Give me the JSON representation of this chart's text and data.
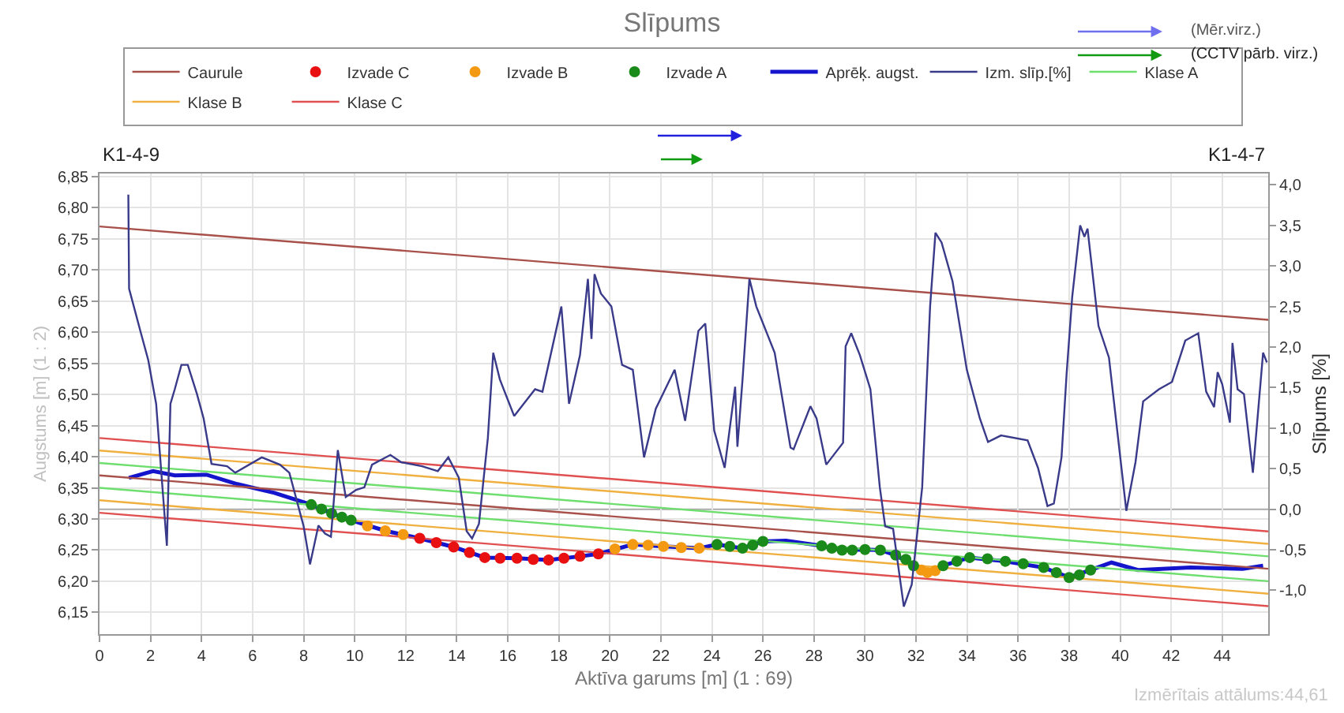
{
  "chart_data": {
    "type": "line",
    "title": "Slīpums",
    "xlabel": "Aktīva garums [m] (1 : 69)",
    "ylabel": "Augstums [m] (1 : 2)",
    "y2label": "Slīpums [%]",
    "annotations": [
      "K1-4-9",
      "K1-4-7",
      "(Mēr.virz.)",
      "(CCTV pārb. virz.)",
      "Izmērītais attālums:44,61"
    ],
    "xlim": [
      0,
      45.8
    ],
    "xticks": [
      0,
      2,
      4,
      6,
      8,
      10,
      12,
      14,
      16,
      18,
      20,
      22,
      24,
      26,
      28,
      30,
      32,
      34,
      36,
      38,
      40,
      42,
      44
    ],
    "ylim": [
      6.115,
      6.855
    ],
    "yticks": [
      {
        "value": 6.15,
        "label": "6,15"
      },
      {
        "value": 6.2,
        "label": "6,20"
      },
      {
        "value": 6.25,
        "label": "6,25"
      },
      {
        "value": 6.3,
        "label": "6,30"
      },
      {
        "value": 6.35,
        "label": "6,35"
      },
      {
        "value": 6.4,
        "label": "6,40"
      },
      {
        "value": 6.45,
        "label": "6,45"
      },
      {
        "value": 6.5,
        "label": "6,50"
      },
      {
        "value": 6.55,
        "label": "6,55"
      },
      {
        "value": 6.6,
        "label": "6,60"
      },
      {
        "value": 6.65,
        "label": "6,65"
      },
      {
        "value": 6.7,
        "label": "6,70"
      },
      {
        "value": 6.75,
        "label": "6,75"
      },
      {
        "value": 6.8,
        "label": "6,80"
      },
      {
        "value": 6.85,
        "label": "6,85"
      }
    ],
    "y2lim": [
      -1.54,
      4.14
    ],
    "y2ticks": [
      {
        "value": -1.0,
        "label": "-1,0"
      },
      {
        "value": -0.5,
        "label": "-0,5"
      },
      {
        "value": 0,
        "label": "0,0"
      },
      {
        "value": 0.5,
        "label": "0,5"
      },
      {
        "value": 1.0,
        "label": "1,0"
      },
      {
        "value": 1.5,
        "label": "1,5"
      },
      {
        "value": 2.0,
        "label": "2,0"
      },
      {
        "value": 2.5,
        "label": "2,5"
      },
      {
        "value": 3.0,
        "label": "3,0"
      },
      {
        "value": 3.5,
        "label": "3,5"
      },
      {
        "value": 4.0,
        "label": "4,0"
      }
    ],
    "grid": true,
    "legend": "top",
    "ref_lines": [
      {
        "axis": "y2",
        "value": 0,
        "color": "#aaaaaa"
      }
    ],
    "series": [
      {
        "name": "Caurule",
        "color": "#a8504a",
        "x": [
          0,
          45.8
        ],
        "values": [
          6.77,
          6.62
        ]
      },
      {
        "type": "scatter",
        "marker": "circle",
        "name": "Izvade C",
        "color": "#e81010",
        "x": [
          12.55,
          13.2,
          13.88,
          14.5,
          15.1,
          15.7,
          16.36,
          17.0,
          17.6,
          18.2,
          18.83,
          19.55
        ],
        "values": [
          6.269,
          6.262,
          6.255,
          6.246,
          6.238,
          6.237,
          6.237,
          6.235,
          6.234,
          6.237,
          6.24,
          6.244
        ]
      },
      {
        "type": "scatter",
        "marker": "circle",
        "name": "Izvade B",
        "color": "#f39a12",
        "x": [
          10.5,
          11.2,
          11.9,
          20.2,
          20.9,
          21.5,
          22.1,
          22.8,
          23.5,
          32.2,
          32.45,
          32.75
        ],
        "values": [
          6.289,
          6.281,
          6.275,
          6.252,
          6.259,
          6.258,
          6.256,
          6.254,
          6.253,
          6.218,
          6.214,
          6.217
        ]
      },
      {
        "type": "scatter",
        "marker": "circle",
        "name": "Izvade A",
        "color": "#1a8a1a",
        "x": [
          8.3,
          8.7,
          9.1,
          9.5,
          9.86,
          24.2,
          24.7,
          25.2,
          25.6,
          26.0,
          28.3,
          28.7,
          29.1,
          29.5,
          30.0,
          30.6,
          31.2,
          31.6,
          31.9,
          33.06,
          33.6,
          34.1,
          34.8,
          35.5,
          36.2,
          37.0,
          37.5,
          38.0,
          38.4,
          38.84
        ],
        "values": [
          6.323,
          6.316,
          6.309,
          6.303,
          6.298,
          6.259,
          6.256,
          6.253,
          6.258,
          6.264,
          6.257,
          6.253,
          6.25,
          6.25,
          6.251,
          6.25,
          6.242,
          6.235,
          6.225,
          6.225,
          6.232,
          6.238,
          6.236,
          6.232,
          6.228,
          6.222,
          6.214,
          6.206,
          6.21,
          6.218
        ]
      },
      {
        "name": "Aprēķ. augst.",
        "color": "#1414cc",
        "x": [
          1.15,
          2.1,
          2.95,
          4.2,
          5.4,
          6.85,
          8.3,
          9.1,
          9.86,
          11.2,
          12.54,
          13.88,
          15.1,
          16.36,
          17.6,
          18.83,
          19.55,
          20.9,
          22.1,
          23.5,
          24.2,
          25.2,
          26.0,
          26.9,
          28.3,
          29.1,
          30.0,
          30.6,
          31.2,
          31.9,
          32.45,
          33.06,
          34.1,
          35.5,
          37.0,
          38.0,
          38.84,
          39.66,
          40.7,
          42.75,
          44.8,
          45.6
        ],
        "values": [
          6.366,
          6.377,
          6.37,
          6.371,
          6.356,
          6.342,
          6.323,
          6.309,
          6.298,
          6.281,
          6.269,
          6.255,
          6.238,
          6.237,
          6.234,
          6.24,
          6.244,
          6.259,
          6.256,
          6.253,
          6.259,
          6.253,
          6.264,
          6.265,
          6.257,
          6.25,
          6.251,
          6.25,
          6.242,
          6.225,
          6.214,
          6.225,
          6.238,
          6.232,
          6.222,
          6.206,
          6.218,
          6.23,
          6.218,
          6.222,
          6.22,
          6.225
        ]
      },
      {
        "name": "Izm. slīp.[%]",
        "axis": "y2",
        "color": "#3a3a8a",
        "x": [
          1.13,
          1.16,
          1.6,
          1.91,
          2.22,
          2.32,
          2.64,
          2.78,
          2.95,
          3.21,
          3.46,
          3.82,
          4.08,
          4.39,
          5.0,
          5.32,
          6.36,
          7.07,
          7.44,
          8.0,
          8.25,
          8.58,
          8.84,
          9.07,
          9.34,
          9.65,
          10.06,
          10.38,
          10.68,
          11.4,
          11.82,
          12.64,
          13.26,
          13.67,
          14.08,
          14.39,
          14.6,
          14.87,
          15.22,
          15.43,
          15.69,
          16.25,
          17.07,
          17.36,
          18.1,
          18.4,
          18.83,
          19.14,
          19.28,
          19.4,
          19.65,
          20.06,
          20.48,
          20.9,
          21.34,
          21.8,
          22.54,
          22.95,
          23.47,
          23.74,
          24.09,
          24.5,
          24.91,
          25.0,
          25.2,
          25.47,
          25.74,
          26.46,
          27.08,
          27.2,
          27.86,
          28.1,
          28.48,
          28.7,
          29.14,
          29.24,
          29.46,
          29.8,
          30.21,
          30.58,
          30.79,
          31.1,
          31.52,
          31.83,
          32.24,
          32.55,
          32.76,
          33.0,
          33.43,
          33.99,
          34.5,
          34.82,
          35.33,
          36.37,
          36.78,
          37.15,
          37.4,
          37.7,
          37.9,
          38.12,
          38.43,
          38.6,
          38.72,
          39.15,
          39.56,
          40.24,
          40.6,
          40.9,
          41.52,
          42.03,
          42.55,
          43.06,
          43.37,
          43.68,
          43.82,
          44.0,
          44.3,
          44.4,
          44.6,
          44.85,
          45.2,
          45.6,
          45.75
        ],
        "values": [
          3.88,
          2.72,
          2.2,
          1.84,
          1.3,
          0.88,
          -0.45,
          1.3,
          1.48,
          1.78,
          1.78,
          1.42,
          1.12,
          0.56,
          0.53,
          0.45,
          0.64,
          0.55,
          0.45,
          -0.21,
          -0.68,
          -0.2,
          -0.3,
          -0.34,
          0.73,
          0.15,
          0.24,
          0.27,
          0.55,
          0.67,
          0.58,
          0.53,
          0.47,
          0.64,
          0.39,
          -0.27,
          -0.36,
          -0.18,
          0.88,
          1.93,
          1.6,
          1.15,
          1.48,
          1.45,
          2.5,
          1.3,
          1.9,
          2.84,
          2.1,
          2.9,
          2.66,
          2.5,
          1.78,
          1.72,
          0.64,
          1.24,
          1.72,
          1.09,
          2.2,
          2.29,
          0.97,
          0.51,
          1.51,
          0.77,
          1.6,
          2.84,
          2.5,
          1.93,
          0.76,
          0.74,
          1.27,
          1.12,
          0.55,
          0.64,
          0.82,
          2.01,
          2.17,
          1.9,
          1.48,
          0.27,
          -0.21,
          -0.24,
          -1.2,
          -0.93,
          0.27,
          2.5,
          3.41,
          3.29,
          2.81,
          1.72,
          1.12,
          0.83,
          0.91,
          0.85,
          0.51,
          0.04,
          0.07,
          0.64,
          1.67,
          2.62,
          3.5,
          3.36,
          3.46,
          2.26,
          1.87,
          -0.02,
          0.58,
          1.33,
          1.48,
          1.57,
          2.08,
          2.17,
          1.45,
          1.26,
          1.69,
          1.54,
          1.07,
          2.05,
          1.48,
          1.42,
          0.45,
          1.93,
          1.81
        ]
      },
      {
        "name": "Klase A",
        "color": "#6ede6e",
        "x": [
          0,
          45.8
        ],
        "values": [
          6.39,
          6.24
        ]
      },
      {
        "name": "Klase B",
        "color": "#f0b040",
        "x": [
          0,
          45.8
        ],
        "values": [
          6.41,
          6.26
        ]
      },
      {
        "name": "Klase C",
        "color": "#e05050",
        "x": [
          0,
          45.8
        ],
        "values": [
          6.43,
          6.28
        ]
      },
      {
        "color": "#a8504a",
        "x": [
          0,
          45.8
        ],
        "values": [
          6.37,
          6.22
        ]
      },
      {
        "color": "#6ede6e",
        "x": [
          0,
          45.8
        ],
        "values": [
          6.35,
          6.2
        ]
      },
      {
        "color": "#f0b040",
        "x": [
          0,
          45.8
        ],
        "values": [
          6.33,
          6.18
        ]
      },
      {
        "color": "#e05050",
        "x": [
          0,
          45.8
        ],
        "values": [
          6.31,
          6.16
        ]
      }
    ]
  }
}
